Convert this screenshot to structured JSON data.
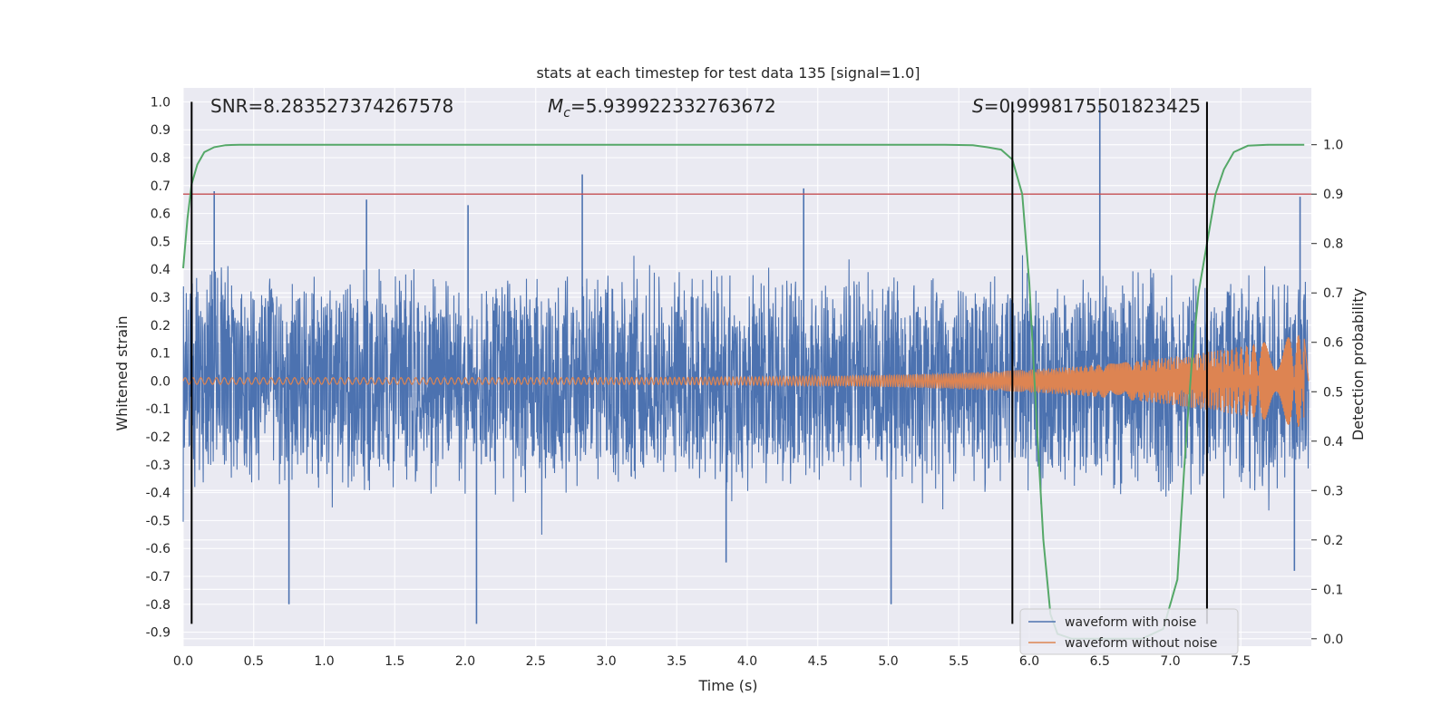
{
  "chart_data": {
    "type": "line",
    "title": "stats at each timestep for test data 135 [signal=1.0]",
    "xlabel": "Time (s)",
    "ylabel": "Whitened strain",
    "y2label": "Detection probability",
    "xlim": [
      0.0,
      8.0
    ],
    "ylim": [
      -0.95,
      1.05
    ],
    "y2lim": [
      -0.015,
      1.115
    ],
    "x_ticks": [
      "0.0",
      "0.5",
      "1.0",
      "1.5",
      "2.0",
      "2.5",
      "3.0",
      "3.5",
      "4.0",
      "4.5",
      "5.0",
      "5.5",
      "6.0",
      "6.5",
      "7.0",
      "7.5"
    ],
    "y_ticks": [
      "1.0",
      "0.9",
      "0.8",
      "0.7",
      "0.6",
      "0.5",
      "0.4",
      "0.3",
      "0.2",
      "0.1",
      "0.0",
      "-0.1",
      "-0.2",
      "-0.3",
      "-0.4",
      "-0.5",
      "-0.6",
      "-0.7",
      "-0.8",
      "-0.9"
    ],
    "y2_ticks": [
      "1.0",
      "0.9",
      "0.8",
      "0.7",
      "0.6",
      "0.5",
      "0.4",
      "0.3",
      "0.2",
      "0.1",
      "0.0"
    ],
    "annotations": {
      "snr": "SNR=8.283527374267578",
      "mc_label": "M",
      "mc_sub": "c",
      "mc_value": "=5.939922332763672",
      "s_label": "S",
      "s_value": "=0.9998175501823425"
    },
    "threshold": 0.9,
    "vertical_lines": [
      0.06,
      5.88,
      7.26
    ],
    "series": [
      {
        "name": "waveform with noise",
        "color": "#4c72b0",
        "axis": "left",
        "noise_envelope": 0.42,
        "spikes": [
          {
            "x": 0.22,
            "y": 0.68
          },
          {
            "x": 0.75,
            "y": -0.8
          },
          {
            "x": 1.3,
            "y": 0.65
          },
          {
            "x": 2.08,
            "y": -0.87
          },
          {
            "x": 2.02,
            "y": 0.63
          },
          {
            "x": 2.83,
            "y": 0.74
          },
          {
            "x": 3.85,
            "y": -0.65
          },
          {
            "x": 4.4,
            "y": 0.69
          },
          {
            "x": 5.02,
            "y": -0.8
          },
          {
            "x": 6.5,
            "y": 1.0
          },
          {
            "x": 7.88,
            "y": -0.68
          },
          {
            "x": 7.92,
            "y": 0.66
          }
        ]
      },
      {
        "name": "waveform without noise",
        "color": "#dd8452",
        "axis": "left",
        "amplitude_start": 0.012,
        "amplitude_end": 0.17,
        "chirp_end": 7.95
      },
      {
        "name": "",
        "color": "#55a868",
        "axis": "right",
        "x": [
          0.0,
          0.03,
          0.06,
          0.1,
          0.15,
          0.22,
          0.3,
          0.4,
          0.6,
          1.0,
          3.0,
          5.4,
          5.6,
          5.7,
          5.8,
          5.88,
          5.95,
          6.0,
          6.05,
          6.1,
          6.15,
          6.2,
          6.3,
          6.5,
          6.8,
          6.95,
          7.05,
          7.1,
          7.15,
          7.2,
          7.26,
          7.32,
          7.38,
          7.45,
          7.55,
          7.7,
          7.95
        ],
        "y": [
          0.75,
          0.85,
          0.92,
          0.96,
          0.985,
          0.995,
          0.999,
          1.0,
          1.0,
          1.0,
          1.0,
          1.0,
          0.999,
          0.995,
          0.99,
          0.97,
          0.9,
          0.72,
          0.45,
          0.2,
          0.05,
          0.01,
          0.0,
          0.0,
          0.0,
          0.02,
          0.12,
          0.35,
          0.55,
          0.7,
          0.8,
          0.9,
          0.95,
          0.985,
          0.998,
          1.0,
          1.0
        ]
      }
    ],
    "legend": {
      "position": "lower-right",
      "entries": [
        "waveform with noise",
        "waveform without noise"
      ]
    },
    "colors": {
      "background": "#eaeaf2",
      "grid": "#ffffff",
      "threshold_line": "#c44e52",
      "vertical_line": "#000000"
    }
  }
}
